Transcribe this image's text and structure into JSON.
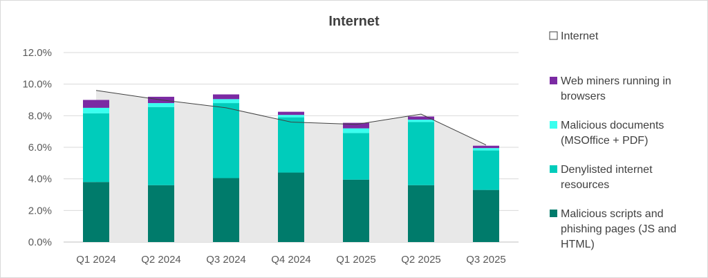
{
  "chart_data": {
    "type": "bar",
    "stacked": true,
    "title": "Internet",
    "xlabel": "",
    "ylabel": "",
    "ylim": [
      0,
      12
    ],
    "y_tick_labels": [
      "0.0%",
      "2.0%",
      "4.0%",
      "6.0%",
      "8.0%",
      "10.0%",
      "12.0%"
    ],
    "categories": [
      "Q1 2024",
      "Q2 2024",
      "Q3 2024",
      "Q4 2024",
      "Q1 2025",
      "Q2 2025",
      "Q3 2025"
    ],
    "series": [
      {
        "name": "Malicious scripts and phishing pages (JS and HTML)",
        "color": "#007b6b",
        "values": [
          3.8,
          3.6,
          4.05,
          4.4,
          3.95,
          3.6,
          3.3
        ]
      },
      {
        "name": "Denylisted internet resources",
        "color": "#00ccbb",
        "values": [
          4.35,
          4.95,
          4.75,
          3.5,
          2.95,
          4.0,
          2.5
        ]
      },
      {
        "name": "Malicious documents (MSOffice + PDF)",
        "color": "#3affef",
        "values": [
          0.35,
          0.25,
          0.25,
          0.15,
          0.3,
          0.15,
          0.15
        ]
      },
      {
        "name": "Web miners running in browsers",
        "color": "#7b2aa3",
        "values": [
          0.5,
          0.4,
          0.3,
          0.2,
          0.35,
          0.2,
          0.15
        ]
      }
    ],
    "area_series": {
      "name": "Internet",
      "fill": "#e8e8e8",
      "stroke": "#404040",
      "values": [
        9.6,
        9.0,
        8.5,
        7.6,
        7.45,
        8.1,
        6.15
      ]
    },
    "legend_position": "right",
    "legend": [
      {
        "label": "Internet",
        "fill": "#ffffff",
        "stroke": "#404040"
      },
      {
        "label": "Web miners running in browsers",
        "fill": "#7b2aa3"
      },
      {
        "label": "Malicious documents (MSOffice + PDF)",
        "fill": "#3affef"
      },
      {
        "label": "Denylisted internet resources",
        "fill": "#00ccbb"
      },
      {
        "label": "Malicious scripts and phishing pages (JS and HTML)",
        "fill": "#007b6b"
      }
    ]
  }
}
